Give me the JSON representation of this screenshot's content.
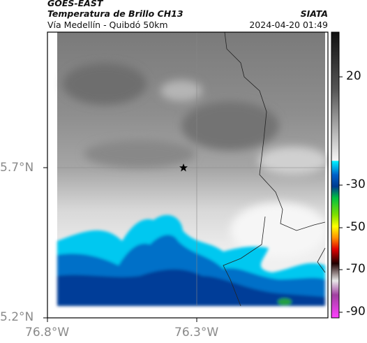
{
  "header": {
    "source": "GOES-EAST",
    "title": "Temperatura de Brillo CH13",
    "subtitle": "Vía Medellín - Quibdó 50km",
    "organization": "SIATA",
    "timestamp": "2024-04-20 01:49"
  },
  "axes": {
    "lat_ticks": [
      "5.7°N",
      "5.2°N"
    ],
    "lon_ticks": [
      "76.8°W",
      "76.3°W"
    ]
  },
  "colorbar": {
    "ticks": [
      "20",
      "-30",
      "-50",
      "-70",
      "-90"
    ]
  }
}
